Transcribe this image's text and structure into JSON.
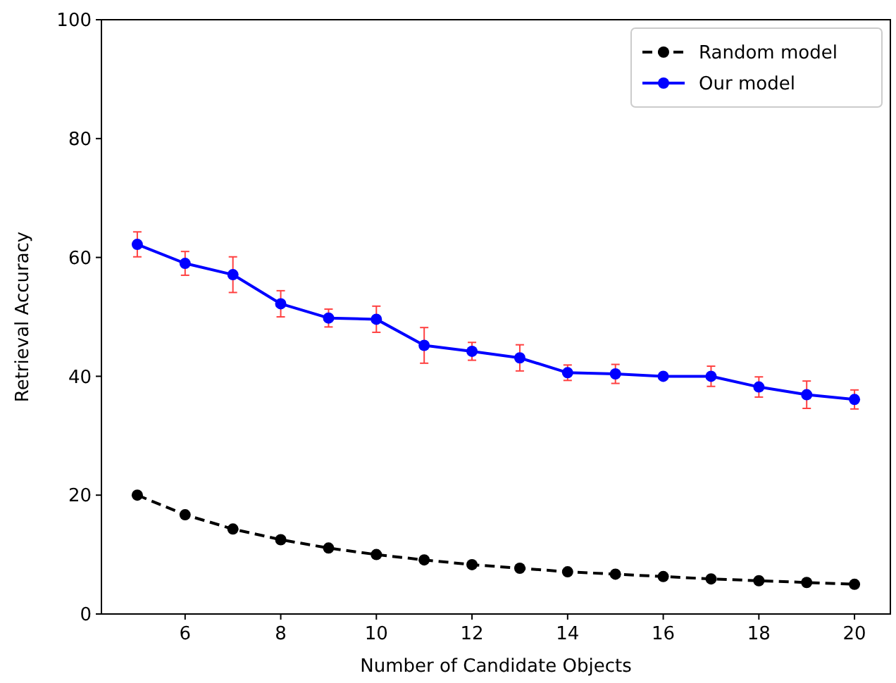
{
  "chart_data": {
    "type": "line",
    "xlabel": "Number of Candidate Objects",
    "ylabel": "Retrieval Accuracy",
    "x": [
      5,
      6,
      7,
      8,
      9,
      10,
      11,
      12,
      13,
      14,
      15,
      16,
      17,
      18,
      19,
      20
    ],
    "xlim": [
      4.25,
      20.75
    ],
    "xticks": [
      6,
      8,
      10,
      12,
      14,
      16,
      18,
      20
    ],
    "ylim": [
      0,
      100
    ],
    "yticks": [
      0,
      20,
      40,
      60,
      80,
      100
    ],
    "grid": false,
    "legend": "top right",
    "marker": "circle",
    "series": [
      {
        "name": "Random model",
        "color": "#000000",
        "line_style": "dashed",
        "values": [
          20,
          16.7,
          14.3,
          12.5,
          11.1,
          10,
          9.1,
          8.3,
          7.7,
          7.1,
          6.7,
          6.3,
          5.9,
          5.6,
          5.3,
          5
        ]
      },
      {
        "name": "Our model",
        "color": "#0000ff",
        "line_style": "solid",
        "values": [
          62.2,
          59,
          57.1,
          52.2,
          49.8,
          49.6,
          45.2,
          44.2,
          43.1,
          40.6,
          40.4,
          40,
          40,
          38.2,
          36.9,
          36.1
        ],
        "errors": [
          2.1,
          2,
          3,
          2.2,
          1.5,
          2.2,
          3,
          1.5,
          2.2,
          1.3,
          1.6,
          0,
          1.7,
          1.7,
          2.3,
          1.6
        ]
      }
    ]
  }
}
